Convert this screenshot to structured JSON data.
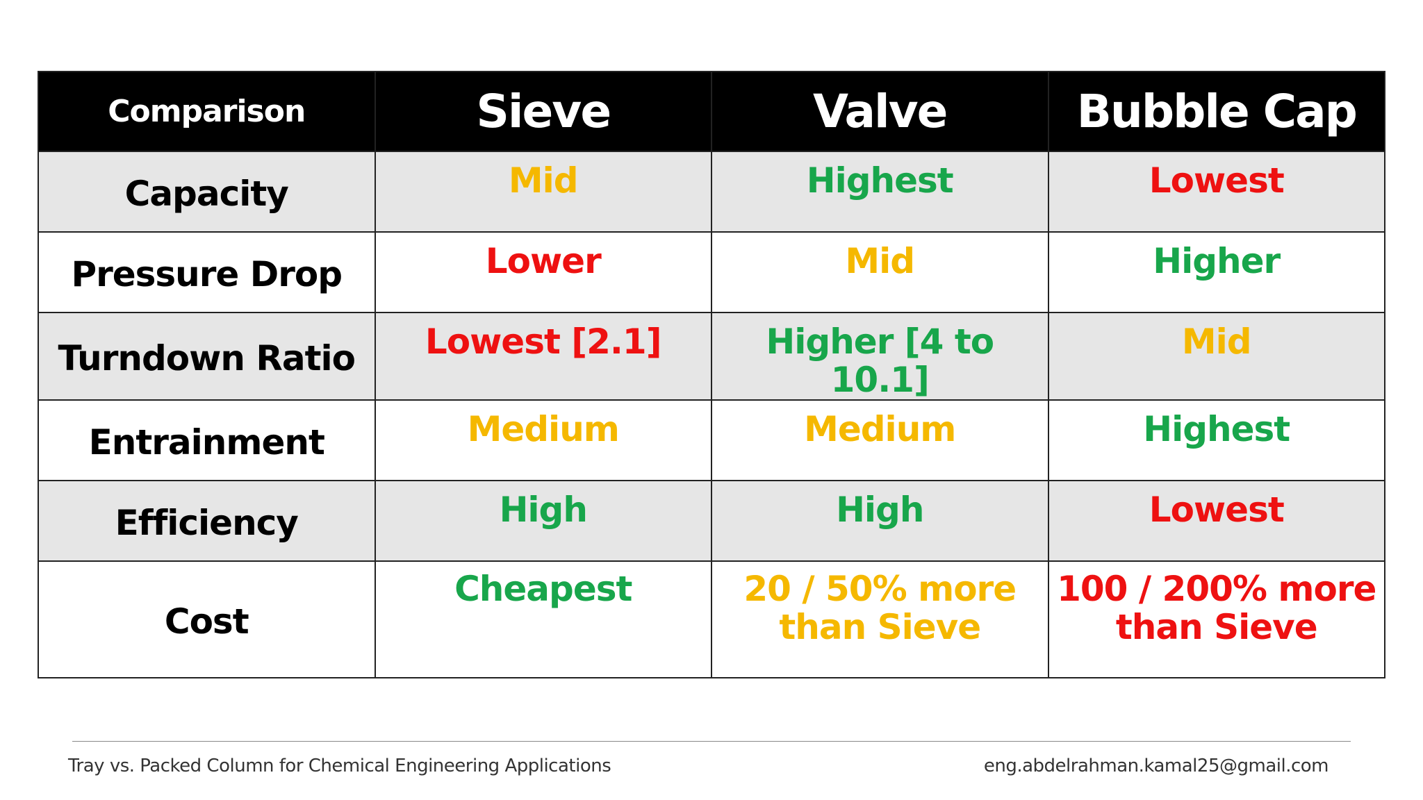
{
  "colors": {
    "header_bg": "#000000",
    "header_text": "#ffffff",
    "row_shade": "#e6e6e6",
    "green": "#18a64b",
    "red": "#ee1111",
    "yellow": "#f5b800"
  },
  "table": {
    "headers": [
      "Comparison",
      "Sieve",
      "Valve",
      "Bubble Cap"
    ],
    "rows": [
      {
        "label": "Capacity",
        "cells": [
          {
            "text": "Mid",
            "color": "yellow"
          },
          {
            "text": "Highest",
            "color": "green"
          },
          {
            "text": "Lowest",
            "color": "red"
          }
        ]
      },
      {
        "label": "Pressure Drop",
        "cells": [
          {
            "text": "Lower",
            "color": "red"
          },
          {
            "text": "Mid",
            "color": "yellow"
          },
          {
            "text": "Higher",
            "color": "green"
          }
        ]
      },
      {
        "label": "Turndown Ratio",
        "cells": [
          {
            "text": "Lowest [2.1]",
            "color": "red"
          },
          {
            "text": "Higher [4 to 10.1]",
            "color": "green"
          },
          {
            "text": "Mid",
            "color": "yellow"
          }
        ]
      },
      {
        "label": "Entrainment",
        "cells": [
          {
            "text": "Medium",
            "color": "yellow"
          },
          {
            "text": "Medium",
            "color": "yellow"
          },
          {
            "text": "Highest",
            "color": "green"
          }
        ]
      },
      {
        "label": "Efficiency",
        "cells": [
          {
            "text": "High",
            "color": "green"
          },
          {
            "text": "High",
            "color": "green"
          },
          {
            "text": "Lowest",
            "color": "red"
          }
        ]
      },
      {
        "label": "Cost",
        "cells": [
          {
            "text": "Cheapest",
            "color": "green"
          },
          {
            "text": "20 / 50% more than Sieve",
            "color": "yellow"
          },
          {
            "text": "100 / 200% more than Sieve",
            "color": "red"
          }
        ]
      }
    ]
  },
  "footer": {
    "left": "Tray vs. Packed Column for Chemical Engineering Applications",
    "right": "eng.abdelrahman.kamal25@gmail.com"
  }
}
